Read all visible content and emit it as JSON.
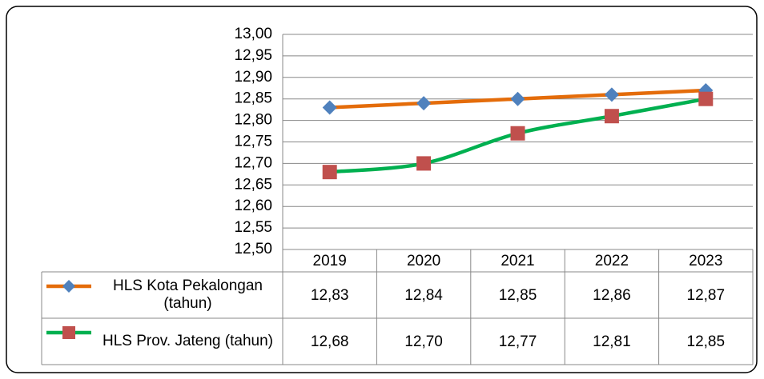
{
  "chart_data": {
    "type": "line",
    "categories": [
      "2019",
      "2020",
      "2021",
      "2022",
      "2023"
    ],
    "series": [
      {
        "name": "HLS Kota Pekalongan (tahun)",
        "color": "#e46c0a",
        "marker": "diamond",
        "marker_color": "#4f81bd",
        "values": [
          12.83,
          12.84,
          12.85,
          12.86,
          12.87
        ],
        "value_labels": [
          "12,83",
          "12,84",
          "12,85",
          "12,86",
          "12,87"
        ]
      },
      {
        "name": "HLS Prov. Jateng (tahun)",
        "color": "#00b050",
        "marker": "square",
        "marker_color": "#c0504d",
        "values": [
          12.68,
          12.7,
          12.77,
          12.81,
          12.85
        ],
        "value_labels": [
          "12,68",
          "12,70",
          "12,77",
          "12,81",
          "12,85"
        ]
      }
    ],
    "ylim": [
      12.5,
      13.0
    ],
    "yticks": [
      {
        "value": 12.5,
        "label": "12,50"
      },
      {
        "value": 12.55,
        "label": "12,55"
      },
      {
        "value": 12.6,
        "label": "12,60"
      },
      {
        "value": 12.65,
        "label": "12,65"
      },
      {
        "value": 12.7,
        "label": "12,70"
      },
      {
        "value": 12.75,
        "label": "12,75"
      },
      {
        "value": 12.8,
        "label": "12,80"
      },
      {
        "value": 12.85,
        "label": "12,85"
      },
      {
        "value": 12.9,
        "label": "12,90"
      },
      {
        "value": 12.95,
        "label": "12,95"
      },
      {
        "value": 13.0,
        "label": "13,00"
      }
    ],
    "grid": true,
    "data_table": true
  }
}
